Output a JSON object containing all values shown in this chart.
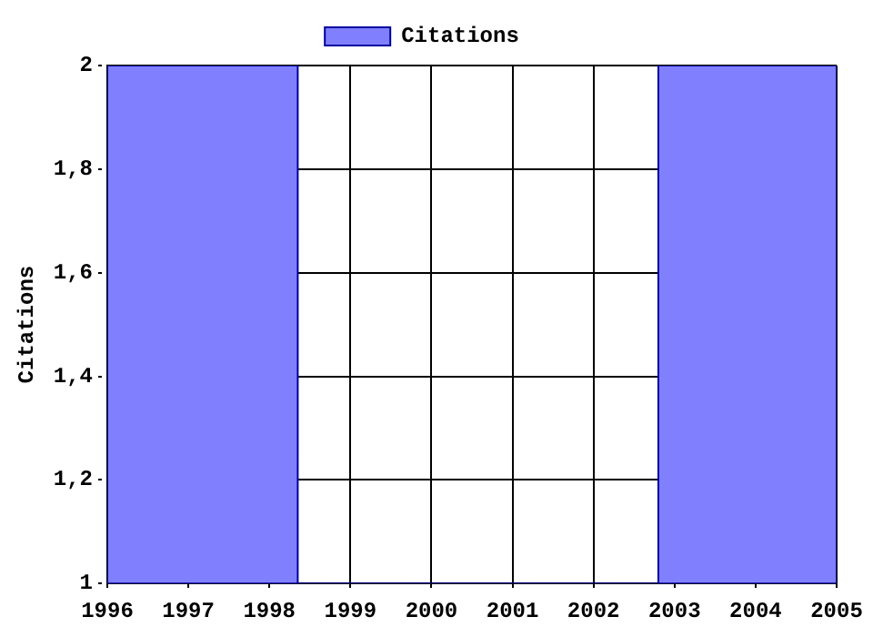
{
  "chart_data": {
    "type": "histogram",
    "bins": [
      1996,
      1998.35,
      2002.8,
      2005
    ],
    "series": [
      {
        "name": "Citations",
        "color": "#8080ff",
        "values": [
          2,
          1,
          2
        ]
      }
    ],
    "ylabel": "Citations",
    "xlim": [
      1996,
      2005
    ],
    "xticks": [
      1996,
      1997,
      1998,
      1999,
      2000,
      2001,
      2002,
      2003,
      2004,
      2005
    ],
    "ylim": [
      1,
      2
    ],
    "yticks": [
      1,
      {
        "value": 1.2,
        "label": "1,2"
      },
      {
        "value": 1.4,
        "label": "1,4"
      },
      {
        "value": 1.6,
        "label": "1,6"
      },
      {
        "value": 1.8,
        "label": "1,8"
      },
      2
    ],
    "grid": true,
    "legend": "top"
  }
}
